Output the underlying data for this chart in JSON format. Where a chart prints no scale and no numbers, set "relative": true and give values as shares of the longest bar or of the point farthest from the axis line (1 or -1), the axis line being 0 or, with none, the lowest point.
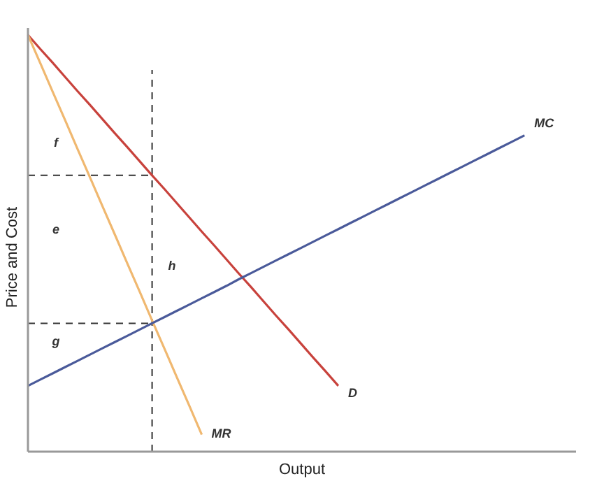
{
  "chart_data": {
    "type": "line",
    "relative": true,
    "xlabel": "Output",
    "ylabel": "Price and Cost",
    "marker": "none",
    "line_style": "solid",
    "categories": [
      null,
      null,
      null,
      null,
      null,
      null,
      null,
      null,
      null,
      null,
      null,
      null,
      null,
      null,
      null,
      null,
      null,
      null,
      null,
      null,
      null,
      null,
      null,
      null,
      null,
      null,
      null,
      null,
      null,
      null,
      null,
      null,
      null,
      null,
      null,
      null,
      null,
      null,
      null,
      null,
      null
    ],
    "series": [
      {
        "name": "D",
        "color": "#c8423c",
        "values": [
          1,
          0.966,
          0.933,
          0.899,
          0.865,
          0.832,
          0.798,
          0.764,
          0.731,
          0.697,
          0.663,
          0.63,
          0.596,
          0.562,
          0.528,
          0.495,
          0.461,
          0.427,
          0.394,
          0.36,
          0.326,
          0.293,
          0.259,
          0.225,
          0.192,
          0.158,
          null,
          null,
          null,
          null,
          null,
          null,
          null,
          null,
          null,
          null,
          null,
          null,
          null,
          null,
          null
        ]
      },
      {
        "name": "MR",
        "color": "#f0b870",
        "values": [
          1,
          0.932,
          0.863,
          0.795,
          0.726,
          0.658,
          0.589,
          0.521,
          0.452,
          0.384,
          0.315,
          0.247,
          0.178,
          0.11,
          0.041,
          null,
          null,
          null,
          null,
          null,
          null,
          null,
          null,
          null,
          null,
          null,
          null,
          null,
          null,
          null,
          null,
          null,
          null,
          null,
          null,
          null,
          null,
          null,
          null,
          null,
          null
        ]
      },
      {
        "name": "MC",
        "color": "#4a5a9a",
        "values": [
          0.158,
          0.173,
          0.188,
          0.203,
          0.218,
          0.233,
          0.248,
          0.263,
          0.278,
          0.293,
          0.308,
          0.323,
          0.338,
          0.353,
          0.368,
          0.383,
          0.398,
          0.414,
          0.429,
          0.444,
          0.459,
          0.474,
          0.489,
          0.504,
          0.519,
          0.534,
          0.549,
          0.564,
          0.579,
          0.594,
          0.609,
          0.624,
          0.639,
          0.654,
          0.669,
          0.684,
          0.699,
          0.714,
          0.729,
          0.744,
          0.759
        ]
      }
    ],
    "ref_lines": [
      {
        "axis": "y",
        "value": 0.663,
        "color": "#333333",
        "line_style": "dashed"
      },
      {
        "axis": "y",
        "value": 0.308,
        "color": "#333333",
        "line_style": "dashed"
      }
    ],
    "annotations": [
      "f",
      "e",
      "g",
      "h"
    ]
  }
}
